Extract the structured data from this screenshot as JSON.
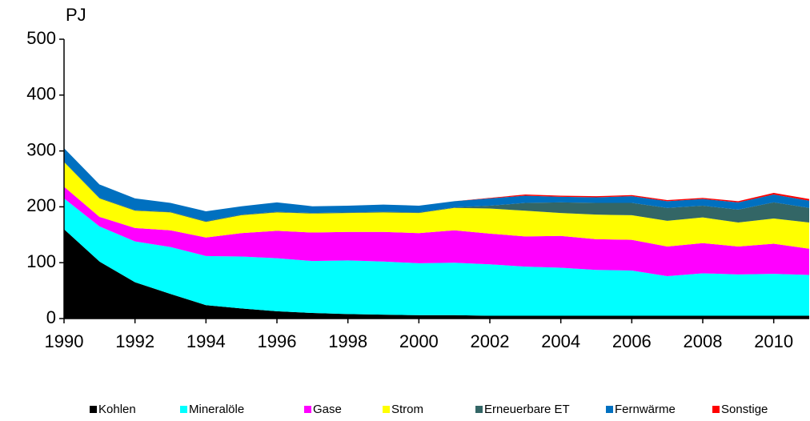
{
  "chart_data": {
    "type": "stacked_area",
    "y_axis_label": "PJ",
    "x": [
      1990,
      1991,
      1992,
      1993,
      1994,
      1995,
      1996,
      1997,
      1998,
      1999,
      2000,
      2001,
      2002,
      2003,
      2004,
      2005,
      2006,
      2007,
      2008,
      2009,
      2010,
      2011
    ],
    "xlim": [
      1990,
      2011
    ],
    "xticks": [
      1990,
      1992,
      1994,
      1996,
      1998,
      2000,
      2002,
      2004,
      2006,
      2008,
      2010
    ],
    "ylim": [
      0,
      500
    ],
    "yticks": [
      0,
      100,
      200,
      300,
      400,
      500
    ],
    "series": [
      {
        "name": "Kohlen",
        "color": "#000000",
        "values": [
          160,
          102,
          65,
          44,
          24,
          18,
          13,
          10,
          8,
          7,
          6,
          6,
          5,
          5,
          5,
          5,
          5,
          5,
          5,
          5,
          5,
          5
        ]
      },
      {
        "name": "Mineralöle",
        "color": "#00ffff",
        "values": [
          55,
          63,
          73,
          84,
          88,
          93,
          95,
          93,
          96,
          95,
          93,
          94,
          92,
          88,
          86,
          82,
          81,
          71,
          76,
          74,
          75,
          73
        ]
      },
      {
        "name": "Gase",
        "color": "#ff00ff",
        "values": [
          21,
          17,
          24,
          30,
          33,
          42,
          49,
          51,
          51,
          53,
          54,
          58,
          55,
          54,
          57,
          55,
          55,
          53,
          54,
          50,
          54,
          47
        ]
      },
      {
        "name": "Strom",
        "color": "#ffff00",
        "values": [
          44,
          33,
          31,
          32,
          28,
          32,
          33,
          34,
          34,
          35,
          36,
          40,
          45,
          46,
          41,
          44,
          44,
          46,
          46,
          43,
          45,
          47
        ]
      },
      {
        "name": "Erneuerbare ET",
        "color": "#336666",
        "values": [
          1,
          1,
          1,
          1,
          1,
          1,
          1,
          1,
          1,
          1,
          1,
          1,
          5,
          14,
          19,
          21,
          22,
          23,
          21,
          23,
          29,
          26
        ]
      },
      {
        "name": "Fernwärme",
        "color": "#0070c0",
        "values": [
          24,
          24,
          21,
          16,
          18,
          15,
          17,
          12,
          12,
          13,
          12,
          11,
          13,
          13,
          10,
          10,
          12,
          12,
          12,
          13,
          14,
          13
        ]
      },
      {
        "name": "Sonstige",
        "color": "#ff0000",
        "values": [
          0,
          0,
          0,
          0,
          0,
          0,
          0,
          0,
          0,
          0,
          0,
          0,
          1,
          2,
          2,
          2,
          2,
          2,
          2,
          2,
          3,
          3
        ]
      }
    ]
  }
}
